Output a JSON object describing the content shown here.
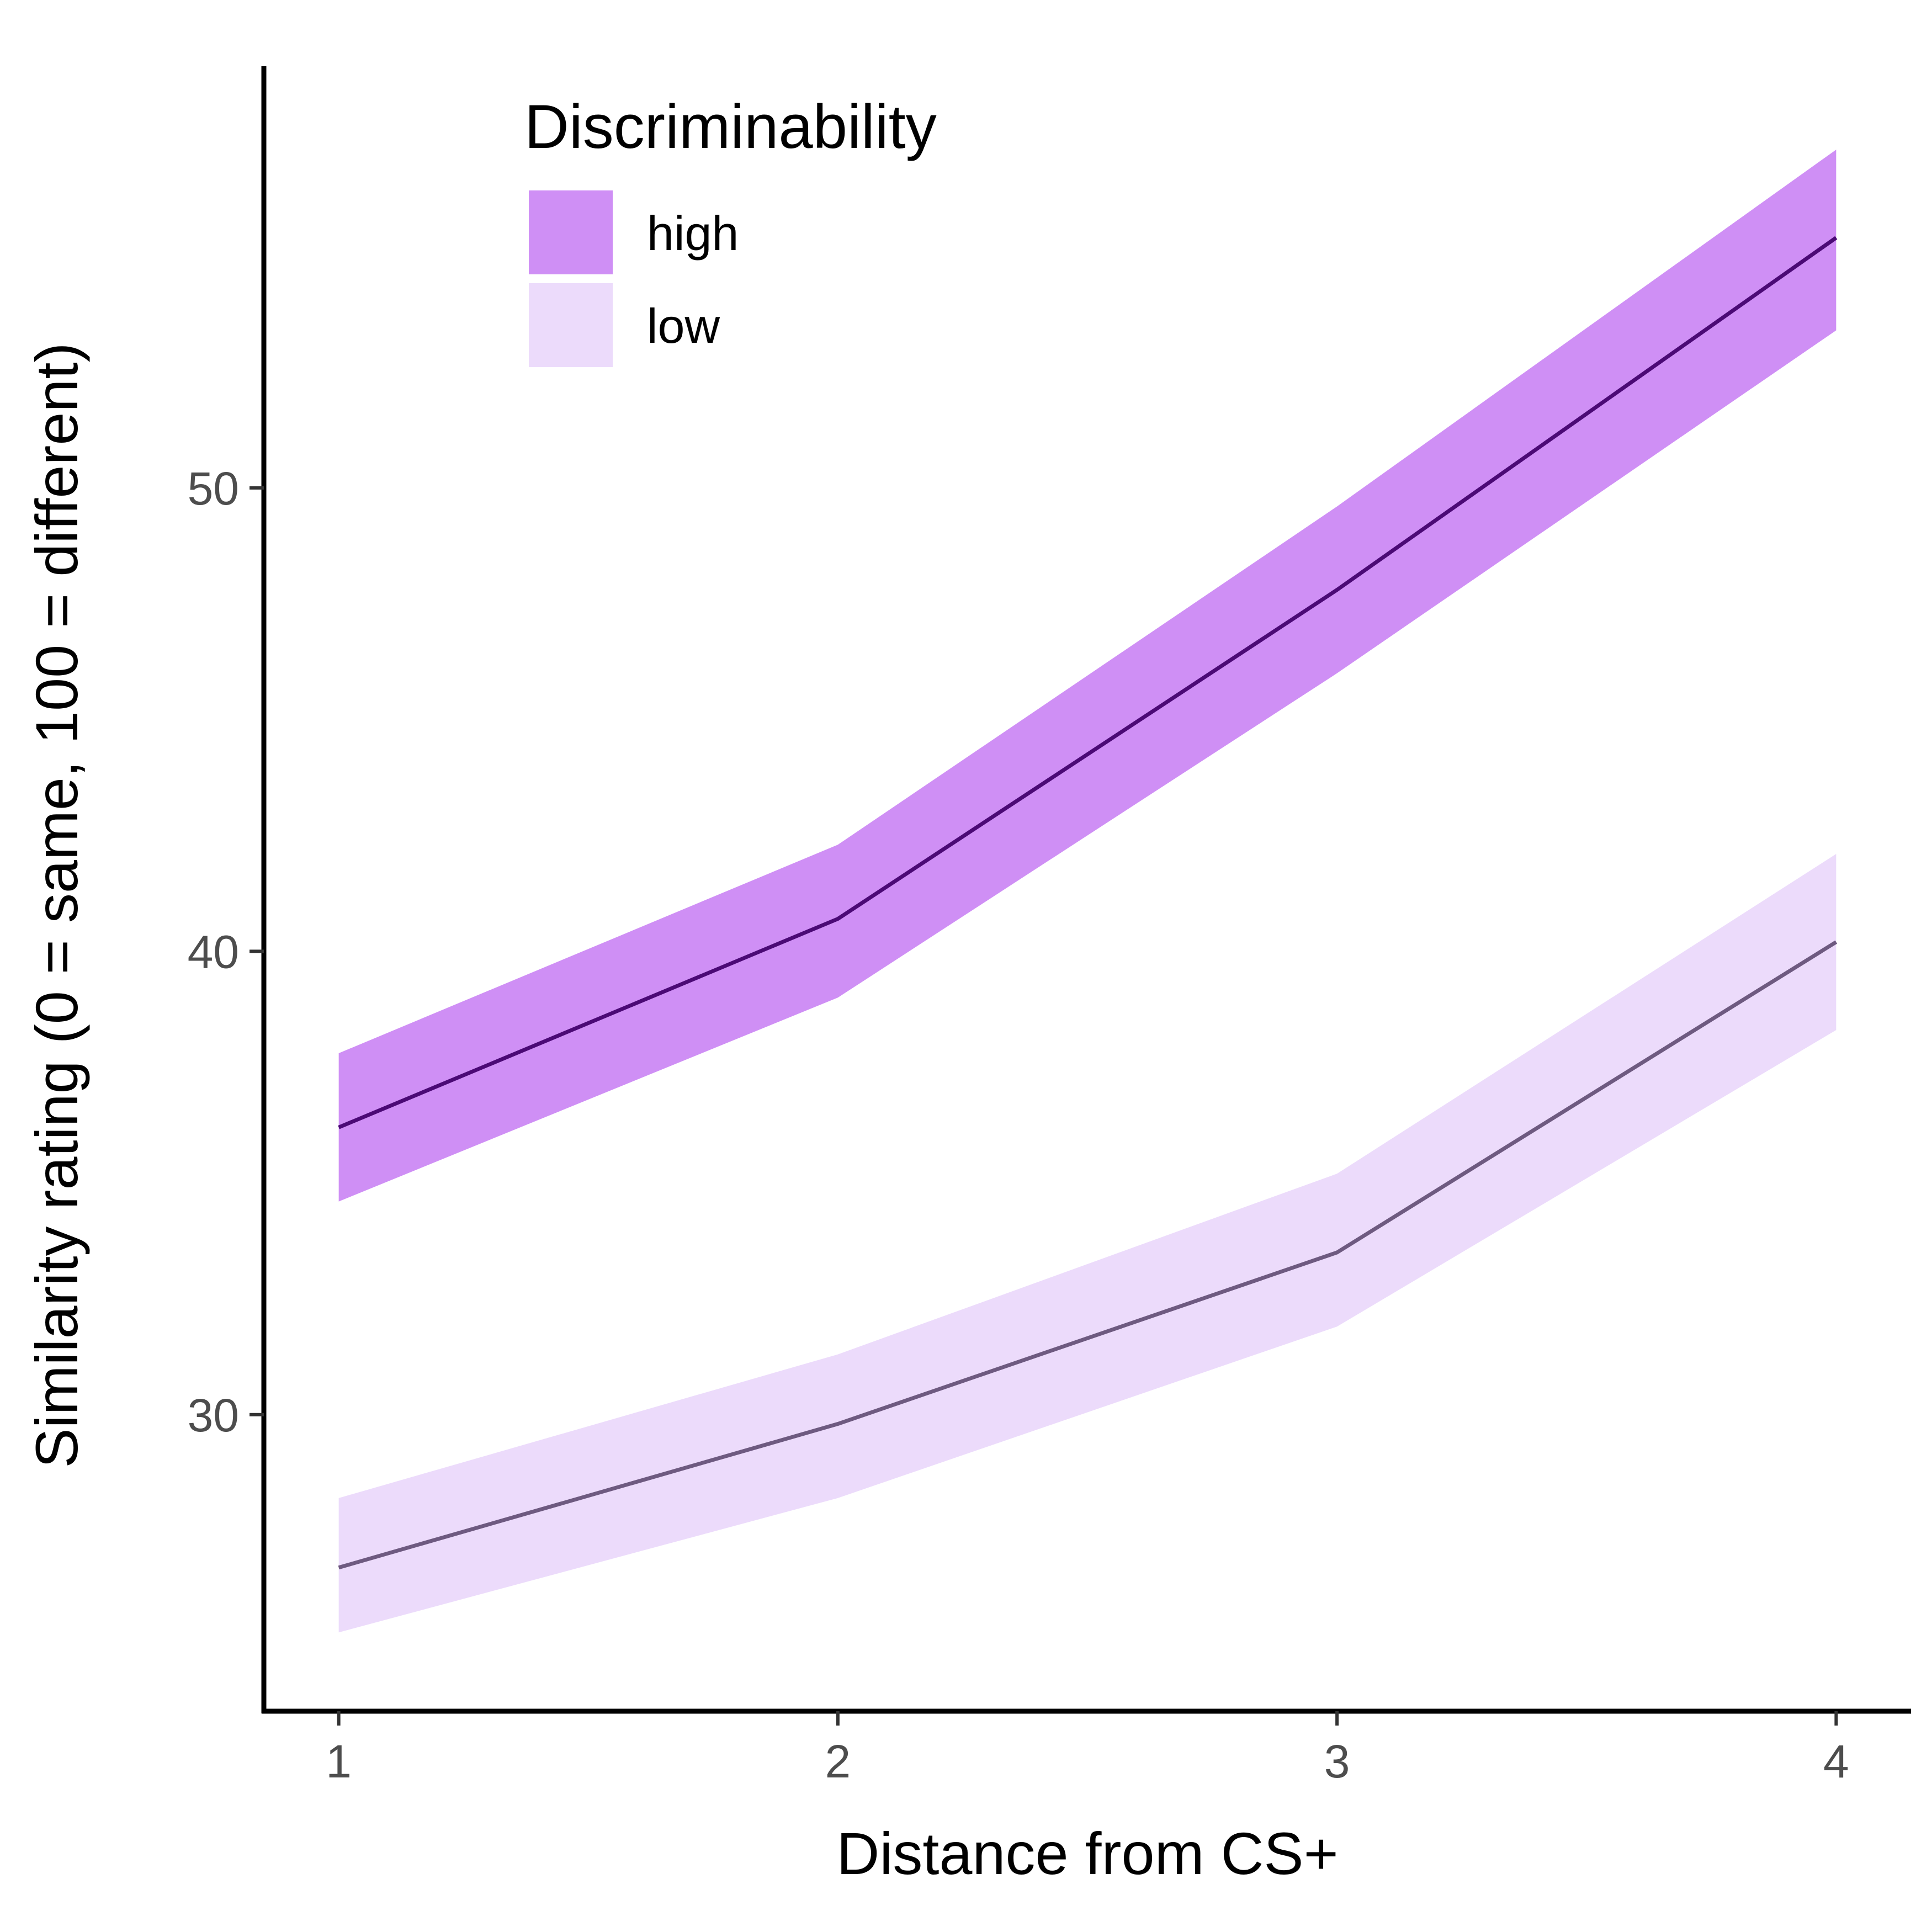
{
  "chart_data": {
    "type": "line",
    "title": "",
    "xlabel": "Distance from CS+",
    "ylabel": "Similarity rating (0 = same, 100 = different)",
    "x": [
      1,
      2,
      3,
      4
    ],
    "x_ticks": [
      "1",
      "2",
      "3",
      "4"
    ],
    "y_ticks": [
      30,
      40,
      50
    ],
    "y_tick_labels": [
      "30",
      "40",
      "50"
    ],
    "xlim": [
      0.85,
      4.15
    ],
    "ylim": [
      23.6,
      59.1
    ],
    "grid": false,
    "legend": {
      "title": "Discriminability",
      "position": "top-left"
    },
    "series": [
      {
        "name": "high",
        "mean": [
          36.2,
          40.7,
          47.8,
          55.4
        ],
        "upper": [
          37.8,
          42.3,
          49.6,
          57.3
        ],
        "lower": [
          34.6,
          39.0,
          46.0,
          53.4
        ],
        "ribbon_color": "#cf8ff5",
        "line_color": "#4b0a75"
      },
      {
        "name": "low",
        "mean": [
          26.7,
          29.8,
          33.5,
          40.2
        ],
        "upper": [
          28.2,
          31.3,
          35.2,
          42.1
        ],
        "lower": [
          25.3,
          28.2,
          31.9,
          38.3
        ],
        "ribbon_color": "#ecdbfb",
        "line_color": "#6e5a80"
      }
    ]
  }
}
